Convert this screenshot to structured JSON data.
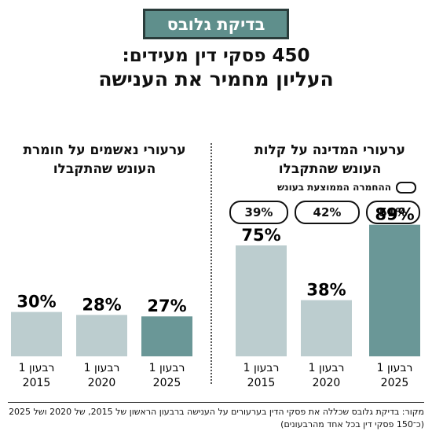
{
  "badge": "בדיקת גלובס",
  "title_line1": "450 פסקי דין מעידים:",
  "title_line2": "העליון מחמיר את הענישה",
  "legend": "ההחמרה הממוצעת בעונש",
  "footer": "מקור: בדיקת גלובס שכללה את פסקי הדין בערעורים על הענישה ברבעון הראשון של 2015, של 2020 ושל 2025 (כ־150 פסקי דין בכל אחד מהרבעונים)",
  "colors": {
    "light": "#bccdcf",
    "dark": "#6a9797",
    "badge": "#5f8f8c"
  },
  "chart_data": [
    {
      "type": "bar",
      "title": "ערעורי נאשמים על חומרת העונש שהתקבלו",
      "categories": [
        "רבעון 1 2015",
        "רבעון 1 2020",
        "רבעון 1 2025"
      ],
      "category_lines": [
        [
          "רבעון 1",
          "2015"
        ],
        [
          "רבעון 1",
          "2020"
        ],
        [
          "רבעון 1",
          "2025"
        ]
      ],
      "values": [
        30,
        28,
        27
      ],
      "value_labels": [
        "30%",
        "28%",
        "27%"
      ],
      "highlight": [
        false,
        false,
        true
      ],
      "ylim": [
        0,
        100
      ]
    },
    {
      "type": "bar",
      "title": "ערעורי המדינה על קלות העונש שהתקבלו",
      "categories": [
        "רבעון 1 2025",
        "רבעון 1 2020",
        "רבעון 1 2015"
      ],
      "category_lines": [
        [
          "רבעון 1",
          "2025"
        ],
        [
          "רבעון 1",
          "2020"
        ],
        [
          "רבעון 1",
          "2015"
        ]
      ],
      "values": [
        89,
        38,
        75
      ],
      "value_labels": [
        "89%",
        "38%",
        "75%"
      ],
      "highlight": [
        true,
        false,
        false
      ],
      "avg_increase_labels": [
        "51%",
        "42%",
        "39%"
      ],
      "ylim": [
        0,
        100
      ]
    }
  ]
}
